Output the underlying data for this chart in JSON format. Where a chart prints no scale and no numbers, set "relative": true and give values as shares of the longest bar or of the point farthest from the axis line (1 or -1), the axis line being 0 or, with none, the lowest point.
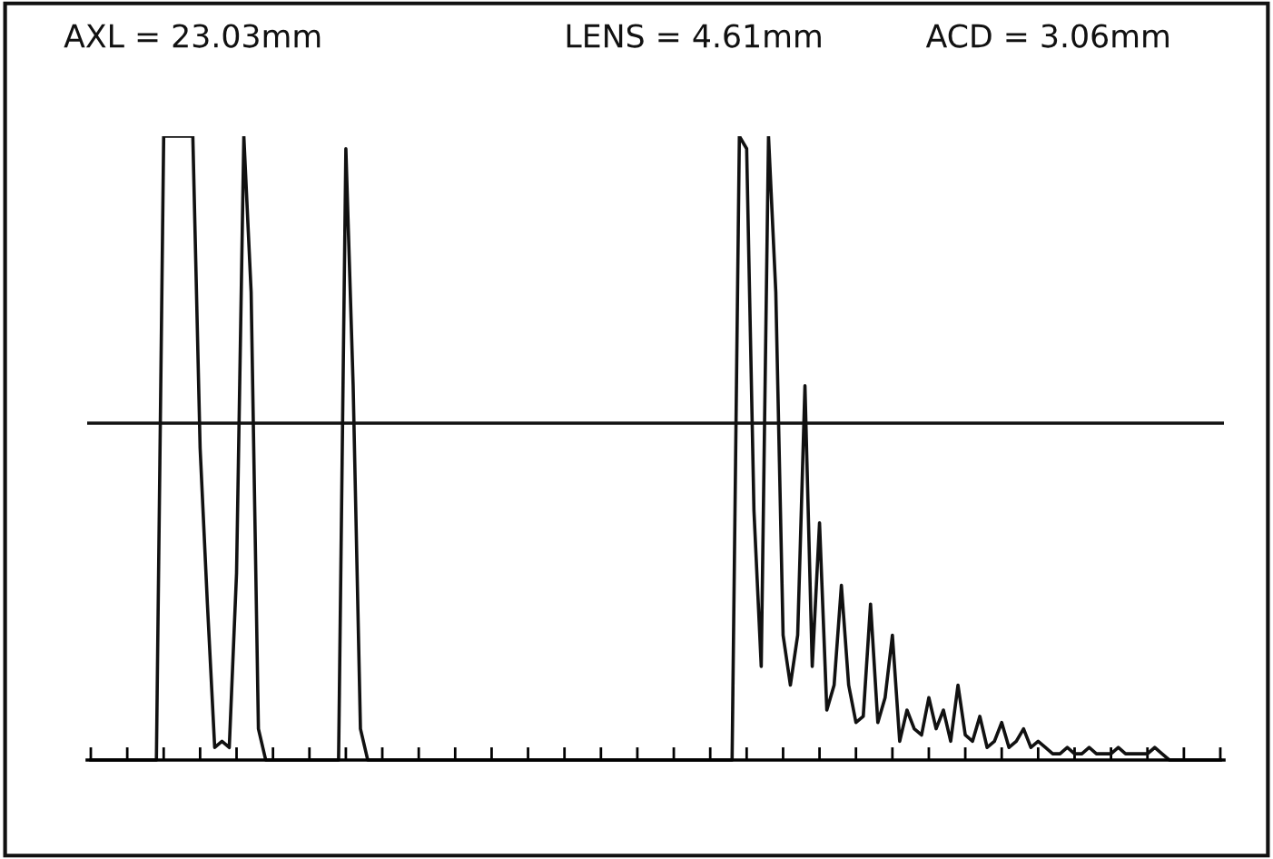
{
  "chart_data": {
    "type": "line",
    "relative": true,
    "grid": false,
    "marker": "none",
    "line_style": "solid",
    "annotations": [
      "AXL = 23.03mm",
      "LENS = 4.61mm",
      "ACD = 3.06mm"
    ],
    "categories": [
      null,
      null,
      null,
      null,
      null,
      null,
      null,
      null,
      null,
      null,
      null,
      null,
      null,
      null,
      null,
      null,
      null,
      null,
      null,
      null,
      null,
      null,
      null,
      null,
      null,
      null,
      null,
      null,
      null,
      null,
      null,
      null,
      null,
      null,
      null,
      null,
      null,
      null,
      null,
      null,
      null,
      null,
      null,
      null,
      null,
      null,
      null,
      null,
      null,
      null,
      null,
      null,
      null,
      null,
      null,
      null,
      null,
      null,
      null,
      null,
      null,
      null,
      null,
      null,
      null,
      null,
      null,
      null,
      null,
      null,
      null,
      null,
      null,
      null,
      null,
      null,
      null,
      null,
      null,
      null,
      null,
      null,
      null,
      null,
      null,
      null,
      null,
      null,
      null,
      null,
      null,
      null,
      null,
      null,
      null,
      null,
      null,
      null,
      null,
      null,
      null,
      null,
      null,
      null,
      null,
      null,
      null,
      null,
      null,
      null,
      null,
      null,
      null,
      null,
      null,
      null,
      null,
      null,
      null,
      null,
      null,
      null,
      null,
      null,
      null,
      null,
      null,
      null,
      null,
      null,
      null,
      null,
      null,
      null,
      null,
      null,
      null,
      null,
      null,
      null,
      null,
      null,
      null,
      null,
      null,
      null,
      null,
      null,
      null,
      null,
      null,
      null,
      null,
      null,
      null,
      null
    ],
    "series": [
      {
        "color": "#111111",
        "values": [
          0,
          0,
          0,
          0,
          0,
          0,
          0,
          0,
          0,
          0,
          1,
          1,
          1,
          1,
          1,
          0.5,
          0.25,
          0.02,
          0.03,
          0.02,
          0.3,
          1,
          0.75,
          0.05,
          0,
          0,
          0,
          0,
          0,
          0,
          0,
          0,
          0,
          0,
          0,
          0.98,
          0.6,
          0.05,
          0,
          0,
          0,
          0,
          0,
          0,
          0,
          0,
          0,
          0,
          0,
          0,
          0,
          0,
          0,
          0,
          0,
          0,
          0,
          0,
          0,
          0,
          0,
          0,
          0,
          0,
          0,
          0,
          0,
          0,
          0,
          0,
          0,
          0,
          0,
          0,
          0,
          0,
          0,
          0,
          0,
          0,
          0,
          0,
          0,
          0,
          0,
          0,
          0,
          0,
          0,
          1,
          0.98,
          0.4,
          0.15,
          1,
          0.75,
          0.2,
          0.12,
          0.2,
          0.6,
          0.15,
          0.38,
          0.08,
          0.12,
          0.28,
          0.12,
          0.06,
          0.07,
          0.25,
          0.06,
          0.1,
          0.2,
          0.03,
          0.08,
          0.05,
          0.04,
          0.1,
          0.05,
          0.08,
          0.03,
          0.12,
          0.04,
          0.03,
          0.07,
          0.02,
          0.03,
          0.06,
          0.02,
          0.03,
          0.05,
          0.02,
          0.03,
          0.02,
          0.01,
          0.01,
          0.02,
          0.01,
          0.01,
          0.02,
          0.01,
          0.01,
          0.01,
          0.02,
          0.01,
          0.01,
          0.01,
          0.01,
          0.02,
          0.01,
          0,
          0,
          0,
          0,
          0,
          0,
          0,
          0
        ]
      }
    ],
    "ref_lines": [
      {
        "axis": "y",
        "value": 0.54,
        "color": "#111111"
      }
    ]
  }
}
